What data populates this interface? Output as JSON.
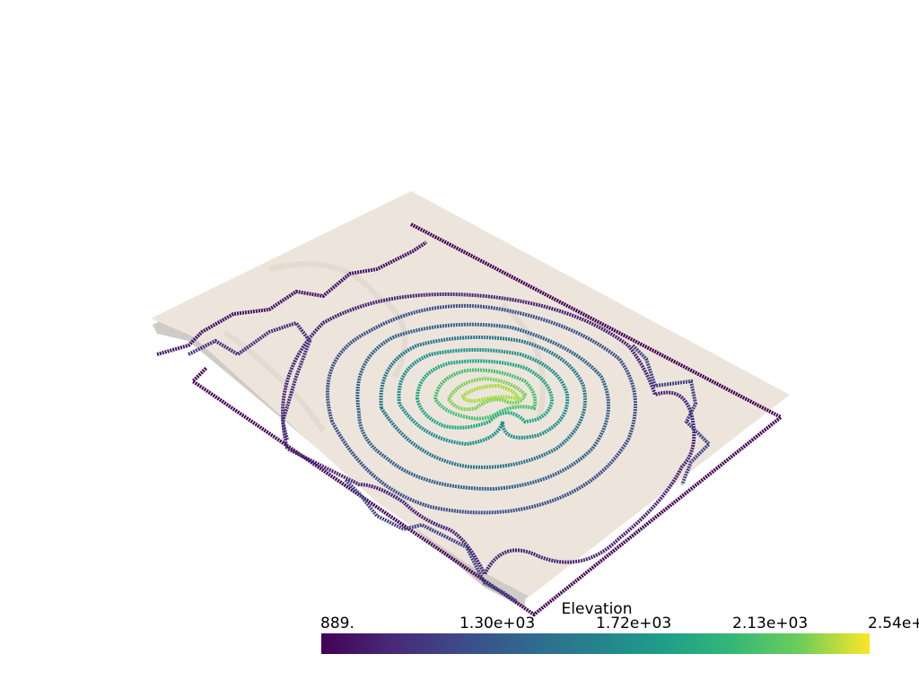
{
  "scalar_bar": {
    "title": "Elevation",
    "ticks": [
      "889.",
      "1.30e+03",
      "1.72e+03",
      "2.13e+03",
      "2.54e+"
    ],
    "range": [
      889,
      2540
    ],
    "colormap": "viridis",
    "colors": [
      "#440154",
      "#3b528b",
      "#21918c",
      "#5ec962",
      "#fde725"
    ]
  },
  "scene": {
    "surface_color": "#ede5dc",
    "surface_shadow_color": "#c8c4bf",
    "contour_levels": [
      889,
      1050,
      1200,
      1350,
      1500,
      1650,
      1800,
      1950,
      2100,
      2250,
      2400
    ]
  }
}
